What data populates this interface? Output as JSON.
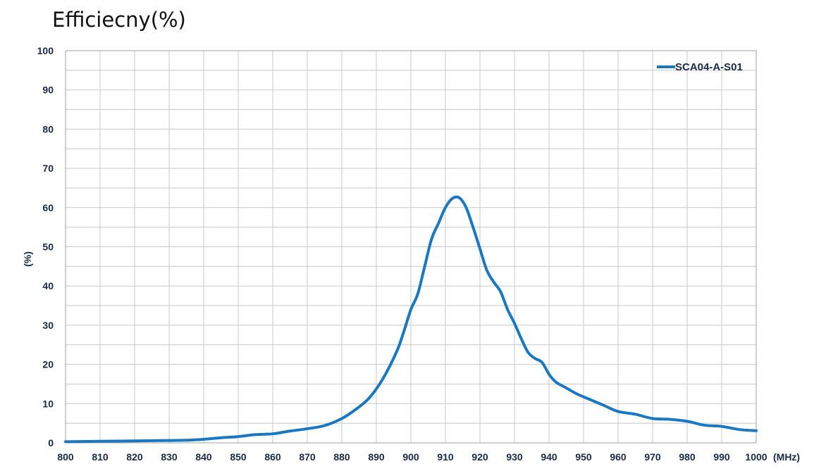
{
  "chart_data": {
    "type": "line",
    "title": "Efficiecny(%)",
    "ylabel": "(%)",
    "xlabel": "(MHz)",
    "xlim": [
      800,
      1000
    ],
    "ylim": [
      0,
      100
    ],
    "x_ticks": [
      "800",
      "810",
      "820",
      "830",
      "840",
      "850",
      "860",
      "870",
      "880",
      "890",
      "900",
      "910",
      "920",
      "930",
      "940",
      "950",
      "960",
      "970",
      "980",
      "990",
      "1000"
    ],
    "y_ticks": [
      "0",
      "10",
      "20",
      "30",
      "40",
      "50",
      "60",
      "70",
      "80",
      "90",
      "100"
    ],
    "grid": true,
    "legend_position": "top-right",
    "colors": {
      "series": "#1a78c2",
      "grid": "#c8c8c8",
      "axis_text": "#1a2a44"
    },
    "series": [
      {
        "name": "SCA04-A-S01",
        "points": [
          [
            800,
            0.3
          ],
          [
            810,
            0.4
          ],
          [
            820,
            0.5
          ],
          [
            830,
            0.6
          ],
          [
            836,
            0.7
          ],
          [
            840,
            0.9
          ],
          [
            845,
            1.3
          ],
          [
            850,
            1.6
          ],
          [
            855,
            2.1
          ],
          [
            860,
            2.3
          ],
          [
            865,
            3.0
          ],
          [
            870,
            3.6
          ],
          [
            875,
            4.4
          ],
          [
            880,
            6.2
          ],
          [
            884,
            8.5
          ],
          [
            888,
            11.5
          ],
          [
            892,
            16.5
          ],
          [
            896,
            23.5
          ],
          [
            898,
            28.5
          ],
          [
            900,
            34.0
          ],
          [
            902,
            38.0
          ],
          [
            904,
            45.0
          ],
          [
            906,
            52.0
          ],
          [
            908,
            56.0
          ],
          [
            910,
            60.0
          ],
          [
            912,
            62.3
          ],
          [
            914,
            62.5
          ],
          [
            916,
            60.0
          ],
          [
            918,
            55.0
          ],
          [
            920,
            49.5
          ],
          [
            922,
            44.0
          ],
          [
            924,
            41.0
          ],
          [
            926,
            38.5
          ],
          [
            928,
            34.0
          ],
          [
            930,
            30.5
          ],
          [
            932,
            26.5
          ],
          [
            934,
            23.0
          ],
          [
            936,
            21.5
          ],
          [
            938,
            20.5
          ],
          [
            940,
            17.5
          ],
          [
            942,
            15.5
          ],
          [
            945,
            14.0
          ],
          [
            948,
            12.5
          ],
          [
            952,
            11.0
          ],
          [
            956,
            9.5
          ],
          [
            960,
            8.0
          ],
          [
            965,
            7.3
          ],
          [
            970,
            6.2
          ],
          [
            975,
            6.0
          ],
          [
            980,
            5.5
          ],
          [
            985,
            4.5
          ],
          [
            990,
            4.2
          ],
          [
            995,
            3.4
          ],
          [
            1000,
            3.1
          ]
        ]
      }
    ]
  }
}
